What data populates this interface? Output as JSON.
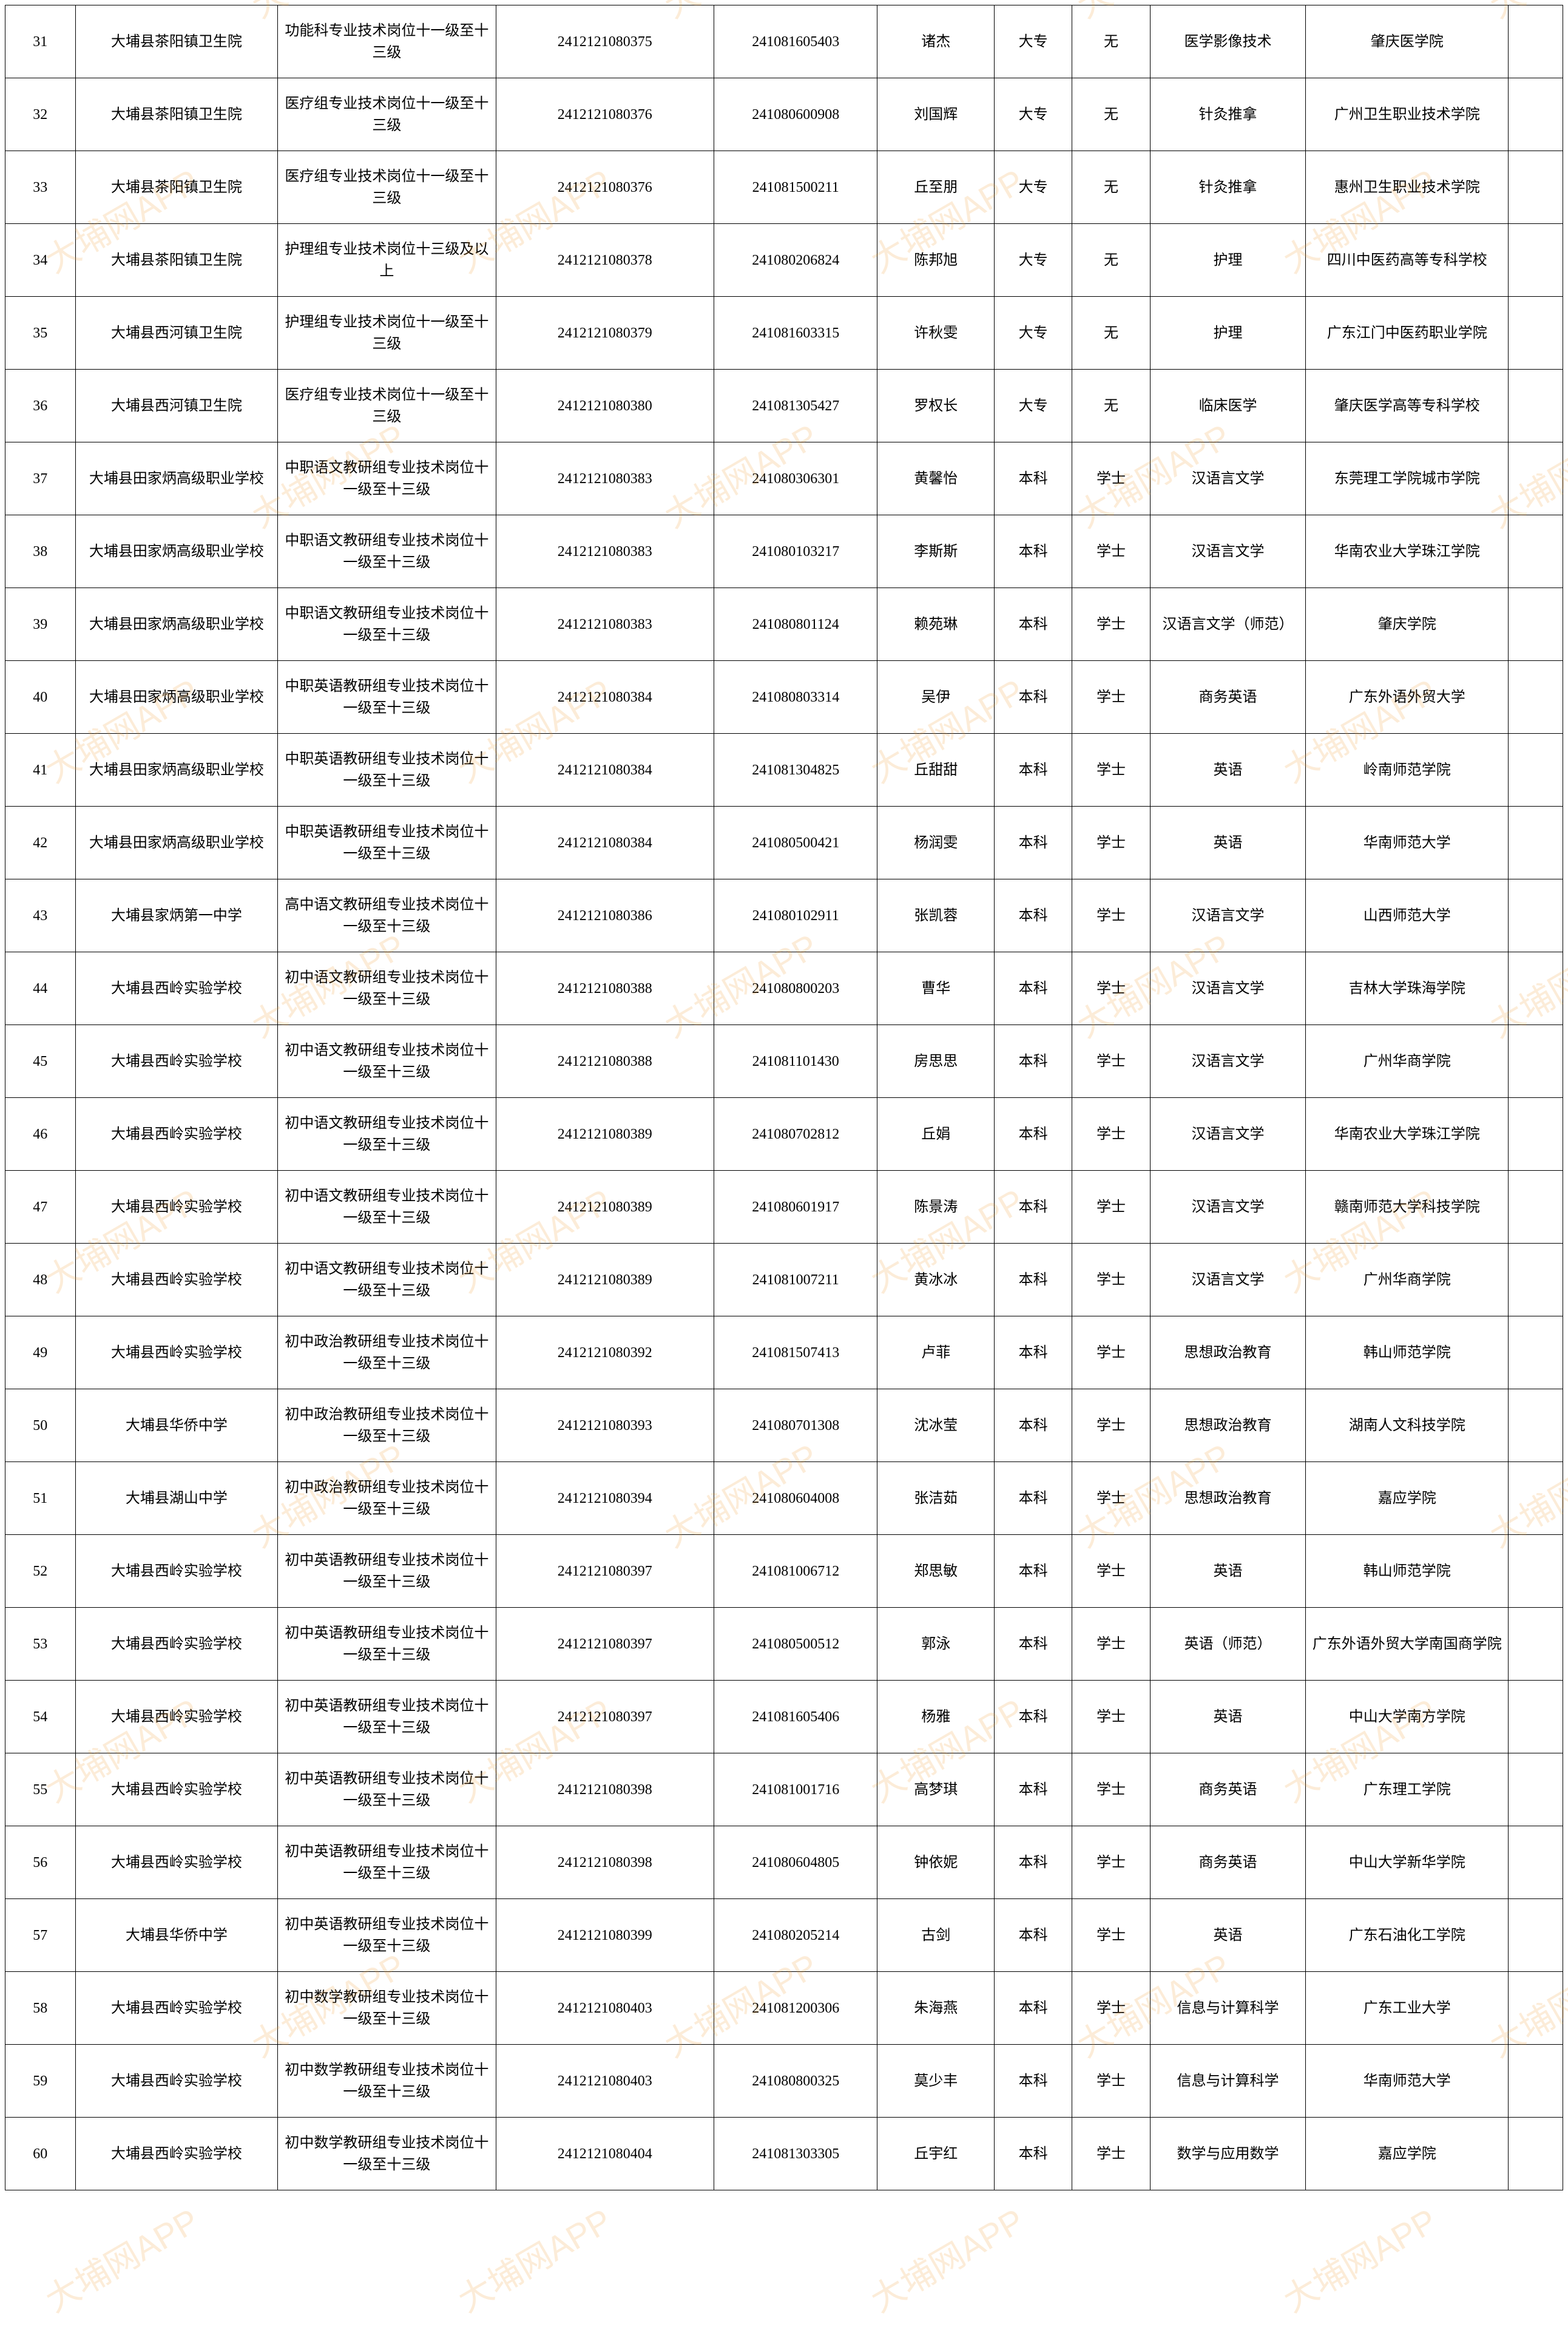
{
  "watermark_text": "大埔网APP",
  "columns": [
    "idx",
    "unit",
    "pos",
    "code1",
    "code2",
    "name",
    "edu",
    "deg",
    "major",
    "sch",
    "ext"
  ],
  "rows": [
    [
      "31",
      "大埔县茶阳镇卫生院",
      "功能科专业技术岗位十一级至十三级",
      "2412121080375",
      "241081605403",
      "诸杰",
      "大专",
      "无",
      "医学影像技术",
      "肇庆医学院",
      ""
    ],
    [
      "32",
      "大埔县茶阳镇卫生院",
      "医疗组专业技术岗位十一级至十三级",
      "2412121080376",
      "241080600908",
      "刘国辉",
      "大专",
      "无",
      "针灸推拿",
      "广州卫生职业技术学院",
      ""
    ],
    [
      "33",
      "大埔县茶阳镇卫生院",
      "医疗组专业技术岗位十一级至十三级",
      "2412121080376",
      "241081500211",
      "丘至朋",
      "大专",
      "无",
      "针灸推拿",
      "惠州卫生职业技术学院",
      ""
    ],
    [
      "34",
      "大埔县茶阳镇卫生院",
      "护理组专业技术岗位十三级及以上",
      "2412121080378",
      "241080206824",
      "陈邦旭",
      "大专",
      "无",
      "护理",
      "四川中医药高等专科学校",
      ""
    ],
    [
      "35",
      "大埔县西河镇卫生院",
      "护理组专业技术岗位十一级至十三级",
      "2412121080379",
      "241081603315",
      "许秋雯",
      "大专",
      "无",
      "护理",
      "广东江门中医药职业学院",
      ""
    ],
    [
      "36",
      "大埔县西河镇卫生院",
      "医疗组专业技术岗位十一级至十三级",
      "2412121080380",
      "241081305427",
      "罗权长",
      "大专",
      "无",
      "临床医学",
      "肇庆医学高等专科学校",
      ""
    ],
    [
      "37",
      "大埔县田家炳高级职业学校",
      "中职语文教研组专业技术岗位十一级至十三级",
      "2412121080383",
      "241080306301",
      "黄馨怡",
      "本科",
      "学士",
      "汉语言文学",
      "东莞理工学院城市学院",
      ""
    ],
    [
      "38",
      "大埔县田家炳高级职业学校",
      "中职语文教研组专业技术岗位十一级至十三级",
      "2412121080383",
      "241080103217",
      "李斯斯",
      "本科",
      "学士",
      "汉语言文学",
      "华南农业大学珠江学院",
      ""
    ],
    [
      "39",
      "大埔县田家炳高级职业学校",
      "中职语文教研组专业技术岗位十一级至十三级",
      "2412121080383",
      "241080801124",
      "赖苑琳",
      "本科",
      "学士",
      "汉语言文学（师范）",
      "肇庆学院",
      ""
    ],
    [
      "40",
      "大埔县田家炳高级职业学校",
      "中职英语教研组专业技术岗位十一级至十三级",
      "2412121080384",
      "241080803314",
      "吴伊",
      "本科",
      "学士",
      "商务英语",
      "广东外语外贸大学",
      ""
    ],
    [
      "41",
      "大埔县田家炳高级职业学校",
      "中职英语教研组专业技术岗位十一级至十三级",
      "2412121080384",
      "241081304825",
      "丘甜甜",
      "本科",
      "学士",
      "英语",
      "岭南师范学院",
      ""
    ],
    [
      "42",
      "大埔县田家炳高级职业学校",
      "中职英语教研组专业技术岗位十一级至十三级",
      "2412121080384",
      "241080500421",
      "杨润雯",
      "本科",
      "学士",
      "英语",
      "华南师范大学",
      ""
    ],
    [
      "43",
      "大埔县家炳第一中学",
      "高中语文教研组专业技术岗位十一级至十三级",
      "2412121080386",
      "241080102911",
      "张凯蓉",
      "本科",
      "学士",
      "汉语言文学",
      "山西师范大学",
      ""
    ],
    [
      "44",
      "大埔县西岭实验学校",
      "初中语文教研组专业技术岗位十一级至十三级",
      "2412121080388",
      "241080800203",
      "曹华",
      "本科",
      "学士",
      "汉语言文学",
      "吉林大学珠海学院",
      ""
    ],
    [
      "45",
      "大埔县西岭实验学校",
      "初中语文教研组专业技术岗位十一级至十三级",
      "2412121080388",
      "241081101430",
      "房思思",
      "本科",
      "学士",
      "汉语言文学",
      "广州华商学院",
      ""
    ],
    [
      "46",
      "大埔县西岭实验学校",
      "初中语文教研组专业技术岗位十一级至十三级",
      "2412121080389",
      "241080702812",
      "丘娟",
      "本科",
      "学士",
      "汉语言文学",
      "华南农业大学珠江学院",
      ""
    ],
    [
      "47",
      "大埔县西岭实验学校",
      "初中语文教研组专业技术岗位十一级至十三级",
      "2412121080389",
      "241080601917",
      "陈景涛",
      "本科",
      "学士",
      "汉语言文学",
      "赣南师范大学科技学院",
      ""
    ],
    [
      "48",
      "大埔县西岭实验学校",
      "初中语文教研组专业技术岗位十一级至十三级",
      "2412121080389",
      "241081007211",
      "黄冰冰",
      "本科",
      "学士",
      "汉语言文学",
      "广州华商学院",
      ""
    ],
    [
      "49",
      "大埔县西岭实验学校",
      "初中政治教研组专业技术岗位十一级至十三级",
      "2412121080392",
      "241081507413",
      "卢菲",
      "本科",
      "学士",
      "思想政治教育",
      "韩山师范学院",
      ""
    ],
    [
      "50",
      "大埔县华侨中学",
      "初中政治教研组专业技术岗位十一级至十三级",
      "2412121080393",
      "241080701308",
      "沈冰莹",
      "本科",
      "学士",
      "思想政治教育",
      "湖南人文科技学院",
      ""
    ],
    [
      "51",
      "大埔县湖山中学",
      "初中政治教研组专业技术岗位十一级至十三级",
      "2412121080394",
      "241080604008",
      "张洁茹",
      "本科",
      "学士",
      "思想政治教育",
      "嘉应学院",
      ""
    ],
    [
      "52",
      "大埔县西岭实验学校",
      "初中英语教研组专业技术岗位十一级至十三级",
      "2412121080397",
      "241081006712",
      "郑思敏",
      "本科",
      "学士",
      "英语",
      "韩山师范学院",
      ""
    ],
    [
      "53",
      "大埔县西岭实验学校",
      "初中英语教研组专业技术岗位十一级至十三级",
      "2412121080397",
      "241080500512",
      "郭泳",
      "本科",
      "学士",
      "英语（师范）",
      "广东外语外贸大学南国商学院",
      ""
    ],
    [
      "54",
      "大埔县西岭实验学校",
      "初中英语教研组专业技术岗位十一级至十三级",
      "2412121080397",
      "241081605406",
      "杨雅",
      "本科",
      "学士",
      "英语",
      "中山大学南方学院",
      ""
    ],
    [
      "55",
      "大埔县西岭实验学校",
      "初中英语教研组专业技术岗位十一级至十三级",
      "2412121080398",
      "241081001716",
      "高梦琪",
      "本科",
      "学士",
      "商务英语",
      "广东理工学院",
      ""
    ],
    [
      "56",
      "大埔县西岭实验学校",
      "初中英语教研组专业技术岗位十一级至十三级",
      "2412121080398",
      "241080604805",
      "钟依妮",
      "本科",
      "学士",
      "商务英语",
      "中山大学新华学院",
      ""
    ],
    [
      "57",
      "大埔县华侨中学",
      "初中英语教研组专业技术岗位十一级至十三级",
      "2412121080399",
      "241080205214",
      "古剑",
      "本科",
      "学士",
      "英语",
      "广东石油化工学院",
      ""
    ],
    [
      "58",
      "大埔县西岭实验学校",
      "初中数学教研组专业技术岗位十一级至十三级",
      "2412121080403",
      "241081200306",
      "朱海燕",
      "本科",
      "学士",
      "信息与计算科学",
      "广东工业大学",
      ""
    ],
    [
      "59",
      "大埔县西岭实验学校",
      "初中数学教研组专业技术岗位十一级至十三级",
      "2412121080403",
      "241080800325",
      "莫少丰",
      "本科",
      "学士",
      "信息与计算科学",
      "华南师范大学",
      ""
    ],
    [
      "60",
      "大埔县西岭实验学校",
      "初中数学教研组专业技术岗位十一级至十三级",
      "2412121080404",
      "241081303305",
      "丘宇红",
      "本科",
      "学士",
      "数学与应用数学",
      "嘉应学院",
      ""
    ]
  ]
}
